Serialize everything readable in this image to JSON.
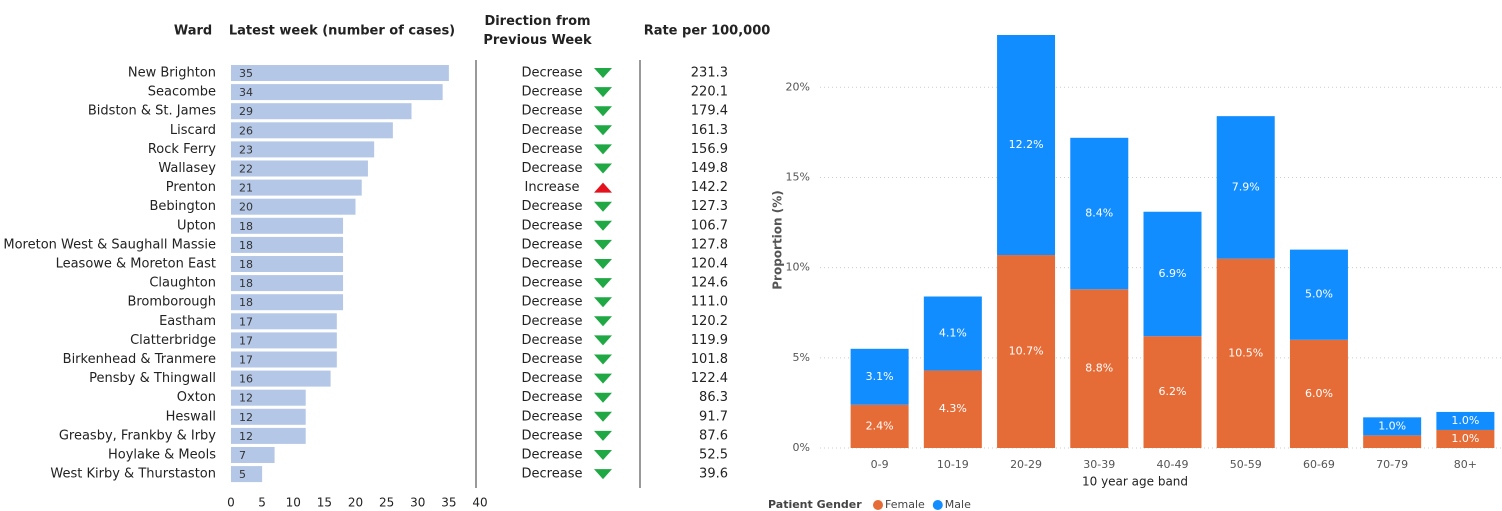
{
  "chart_data": [
    {
      "type": "barh",
      "headers": {
        "ward": "Ward",
        "cases": "Latest week (number of cases)",
        "direction": "Direction from Previous Week",
        "rate": "Rate per 100,000"
      },
      "categories": [
        "New Brighton",
        "Seacombe",
        "Bidston & St. James",
        "Liscard",
        "Rock Ferry",
        "Wallasey",
        "Prenton",
        "Bebington",
        "Upton",
        "Moreton West & Saughall Massie",
        "Leasowe & Moreton East",
        "Claughton",
        "Bromborough",
        "Eastham",
        "Clatterbridge",
        "Birkenhead & Tranmere",
        "Pensby & Thingwall",
        "Oxton",
        "Heswall",
        "Greasby, Frankby & Irby",
        "Hoylake & Meols",
        "West Kirby & Thurstaston"
      ],
      "values": [
        35,
        34,
        29,
        26,
        23,
        22,
        21,
        20,
        18,
        18,
        18,
        18,
        18,
        17,
        17,
        17,
        16,
        12,
        12,
        12,
        7,
        5
      ],
      "direction": [
        "Decrease",
        "Decrease",
        "Decrease",
        "Decrease",
        "Decrease",
        "Decrease",
        "Increase",
        "Decrease",
        "Decrease",
        "Decrease",
        "Decrease",
        "Decrease",
        "Decrease",
        "Decrease",
        "Decrease",
        "Decrease",
        "Decrease",
        "Decrease",
        "Decrease",
        "Decrease",
        "Decrease",
        "Decrease"
      ],
      "direction_colors": {
        "Decrease": "#1fa843",
        "Increase": "#e3121c"
      },
      "direction_shape": {
        "Decrease": "down",
        "Increase": "up"
      },
      "rate": [
        "231.3",
        "220.1",
        "179.4",
        "161.3",
        "156.9",
        "149.8",
        "142.2",
        "127.3",
        "106.7",
        "127.8",
        "120.4",
        "124.6",
        "111.0",
        "120.2",
        "119.9",
        "101.8",
        "122.4",
        "86.3",
        "91.7",
        "87.6",
        "52.5",
        "39.6"
      ],
      "color": "#b4c7e7",
      "xlim": [
        0,
        40
      ],
      "xticks": [
        0,
        5,
        10,
        15,
        20,
        25,
        30,
        35,
        40
      ]
    },
    {
      "type": "stacked-bar",
      "categories": [
        "0-9",
        "10-19",
        "20-29",
        "30-39",
        "40-49",
        "50-59",
        "60-69",
        "70-79",
        "80+"
      ],
      "series": [
        {
          "name": "Female",
          "color": "#e66c37",
          "values": [
            2.4,
            4.3,
            10.7,
            8.8,
            6.2,
            10.5,
            6.0,
            0.7,
            1.0
          ],
          "value_labels": [
            "2.4%",
            "4.3%",
            "10.7%",
            "8.8%",
            "6.2%",
            "10.5%",
            "6.0%",
            null,
            "1.0%"
          ]
        },
        {
          "name": "Male",
          "color": "#118dff",
          "values": [
            3.1,
            4.1,
            12.2,
            8.4,
            6.9,
            7.9,
            5.0,
            1.0,
            1.0
          ],
          "value_labels": [
            "3.1%",
            "4.1%",
            "12.2%",
            "8.4%",
            "6.9%",
            "7.9%",
            "5.0%",
            "1.0%",
            "1.0%"
          ]
        }
      ],
      "ylim": [
        0,
        22.9
      ],
      "yticks": [
        {
          "value": 0,
          "label": "0%"
        },
        {
          "value": 5,
          "label": "5%"
        },
        {
          "value": 10,
          "label": "10%"
        },
        {
          "value": 15,
          "label": "15%"
        },
        {
          "value": 20,
          "label": "20%"
        }
      ],
      "ylabel": "Proportion (%)",
      "xlabel": "10 year age band",
      "legend_title": "Patient Gender",
      "grid": true
    }
  ]
}
